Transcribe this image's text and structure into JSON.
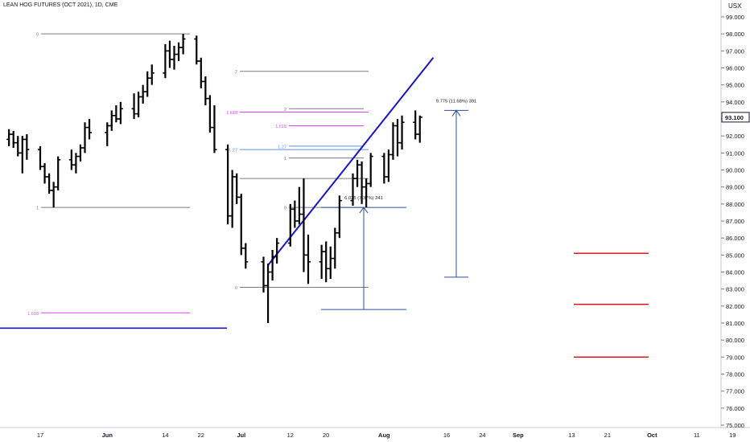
{
  "header": {
    "symbol_line": "LEAN HOG FUTURES (OCT 2021), 1D, CME",
    "currency": "USX"
  },
  "chart_data": {
    "type": "ohlc",
    "title": "LEAN HOG FUTURES (OCT 2021), 1D, CME",
    "y_axis": {
      "ylim": [
        74.5,
        99.8
      ],
      "ticks": [
        "99.000",
        "98.000",
        "97.000",
        "96.000",
        "95.000",
        "94.000",
        "93.000",
        "92.000",
        "91.000",
        "90.000",
        "89.000",
        "88.000",
        "87.000",
        "86.000",
        "85.000",
        "84.000",
        "83.000",
        "82.000",
        "81.000",
        "80.000",
        "79.000",
        "78.000",
        "77.000",
        "76.000",
        "75.000"
      ]
    },
    "current_price": "93.100",
    "x_axis": {
      "labels": [
        {
          "text": "17",
          "date": "2021-05-17"
        },
        {
          "text": "Jun",
          "date": "2021-06-01"
        },
        {
          "text": "14",
          "date": "2021-06-14"
        },
        {
          "text": "22",
          "date": "2021-06-22"
        },
        {
          "text": "Jul",
          "date": "2021-07-01"
        },
        {
          "text": "12",
          "date": "2021-07-12"
        },
        {
          "text": "20",
          "date": "2021-07-20"
        },
        {
          "text": "Aug",
          "date": "2021-08-02"
        },
        {
          "text": "16",
          "date": "2021-08-16"
        },
        {
          "text": "24",
          "date": "2021-08-24"
        },
        {
          "text": "Sep",
          "date": "2021-09-01"
        },
        {
          "text": "13",
          "date": "2021-09-13"
        },
        {
          "text": "21",
          "date": "2021-09-21"
        },
        {
          "text": "Oct",
          "date": "2021-10-01"
        },
        {
          "text": "11",
          "date": "2021-10-11"
        },
        {
          "text": "19",
          "date": "2021-10-19"
        }
      ]
    },
    "colors": {
      "bars": "#000000",
      "trendline": "#1616c8",
      "fib": "#787b86",
      "fib_ext": "#e040fb",
      "fib_127": "#5b8def",
      "measure": "#2a4f9e",
      "targets": "#e00000"
    },
    "bars": [
      {
        "t": "2021-05-10",
        "o": 91.8,
        "h": 92.4,
        "l": 91.4,
        "c": 92.1
      },
      {
        "t": "2021-05-11",
        "o": 92.1,
        "h": 92.3,
        "l": 91.3,
        "c": 91.6
      },
      {
        "t": "2021-05-12",
        "o": 91.6,
        "h": 92.0,
        "l": 90.8,
        "c": 91.0
      },
      {
        "t": "2021-05-13",
        "o": 91.0,
        "h": 92.0,
        "l": 89.8,
        "c": 91.8
      },
      {
        "t": "2021-05-14",
        "o": 91.8,
        "h": 92.1,
        "l": 90.6,
        "c": 91.2
      },
      {
        "t": "2021-05-17",
        "o": 91.2,
        "h": 91.4,
        "l": 90.0,
        "c": 90.2
      },
      {
        "t": "2021-05-18",
        "o": 90.2,
        "h": 90.4,
        "l": 89.2,
        "c": 89.6
      },
      {
        "t": "2021-05-19",
        "o": 89.6,
        "h": 89.8,
        "l": 88.6,
        "c": 88.8
      },
      {
        "t": "2021-05-20",
        "o": 88.8,
        "h": 89.3,
        "l": 87.8,
        "c": 89.0
      },
      {
        "t": "2021-05-21",
        "o": 89.0,
        "h": 90.8,
        "l": 88.8,
        "c": 90.6
      },
      {
        "t": "2021-05-24",
        "o": 90.6,
        "h": 91.2,
        "l": 90.0,
        "c": 90.3
      },
      {
        "t": "2021-05-25",
        "o": 90.3,
        "h": 91.0,
        "l": 89.8,
        "c": 90.8
      },
      {
        "t": "2021-05-26",
        "o": 90.8,
        "h": 91.5,
        "l": 90.5,
        "c": 91.3
      },
      {
        "t": "2021-05-27",
        "o": 91.3,
        "h": 92.8,
        "l": 91.0,
        "c": 92.5
      },
      {
        "t": "2021-05-28",
        "o": 92.5,
        "h": 93.0,
        "l": 91.8,
        "c": 92.2
      },
      {
        "t": "2021-06-01",
        "o": 92.2,
        "h": 92.8,
        "l": 91.4,
        "c": 92.6
      },
      {
        "t": "2021-06-02",
        "o": 92.6,
        "h": 93.5,
        "l": 92.3,
        "c": 93.2
      },
      {
        "t": "2021-06-03",
        "o": 93.2,
        "h": 93.8,
        "l": 92.8,
        "c": 93.0
      },
      {
        "t": "2021-06-04",
        "o": 93.0,
        "h": 94.0,
        "l": 92.7,
        "c": 93.6
      },
      {
        "t": "2021-06-07",
        "o": 93.6,
        "h": 94.5,
        "l": 93.0,
        "c": 93.3
      },
      {
        "t": "2021-06-08",
        "o": 93.3,
        "h": 94.6,
        "l": 93.1,
        "c": 94.3
      },
      {
        "t": "2021-06-09",
        "o": 94.3,
        "h": 95.0,
        "l": 93.9,
        "c": 94.6
      },
      {
        "t": "2021-06-10",
        "o": 94.6,
        "h": 95.8,
        "l": 94.3,
        "c": 95.4
      },
      {
        "t": "2021-06-11",
        "o": 95.4,
        "h": 96.2,
        "l": 95.0,
        "c": 95.7
      },
      {
        "t": "2021-06-14",
        "o": 95.7,
        "h": 97.4,
        "l": 95.4,
        "c": 97.0
      },
      {
        "t": "2021-06-15",
        "o": 97.0,
        "h": 97.6,
        "l": 96.0,
        "c": 96.5
      },
      {
        "t": "2021-06-16",
        "o": 96.5,
        "h": 97.3,
        "l": 95.9,
        "c": 96.8
      },
      {
        "t": "2021-06-17",
        "o": 96.8,
        "h": 97.5,
        "l": 96.4,
        "c": 97.2
      },
      {
        "t": "2021-06-18",
        "o": 97.2,
        "h": 98.0,
        "l": 96.8,
        "c": 97.7
      },
      {
        "t": "2021-06-21",
        "o": 97.7,
        "h": 97.9,
        "l": 96.2,
        "c": 96.4
      },
      {
        "t": "2021-06-22",
        "o": 96.4,
        "h": 96.6,
        "l": 94.8,
        "c": 95.2
      },
      {
        "t": "2021-06-23",
        "o": 95.2,
        "h": 95.5,
        "l": 93.8,
        "c": 94.2
      },
      {
        "t": "2021-06-24",
        "o": 94.2,
        "h": 94.4,
        "l": 92.2,
        "c": 92.5
      },
      {
        "t": "2021-06-25",
        "o": 92.5,
        "h": 93.8,
        "l": 91.0,
        "c": 91.2
      },
      {
        "t": "2021-06-28",
        "o": 91.2,
        "h": 91.5,
        "l": 86.8,
        "c": 87.3
      },
      {
        "t": "2021-06-29",
        "o": 87.3,
        "h": 90.0,
        "l": 86.6,
        "c": 89.6
      },
      {
        "t": "2021-06-30",
        "o": 89.6,
        "h": 89.8,
        "l": 88.0,
        "c": 88.4
      },
      {
        "t": "2021-07-01",
        "o": 88.4,
        "h": 88.6,
        "l": 85.0,
        "c": 85.4
      },
      {
        "t": "2021-07-02",
        "o": 85.4,
        "h": 85.7,
        "l": 84.2,
        "c": 84.6
      },
      {
        "t": "2021-07-06",
        "o": 84.6,
        "h": 84.9,
        "l": 82.8,
        "c": 83.2
      },
      {
        "t": "2021-07-07",
        "o": 83.2,
        "h": 84.5,
        "l": 81.0,
        "c": 84.0
      },
      {
        "t": "2021-07-08",
        "o": 84.0,
        "h": 85.3,
        "l": 83.5,
        "c": 84.9
      },
      {
        "t": "2021-07-09",
        "o": 84.9,
        "h": 86.0,
        "l": 84.5,
        "c": 85.7
      },
      {
        "t": "2021-07-12",
        "o": 85.7,
        "h": 88.0,
        "l": 85.5,
        "c": 87.7
      },
      {
        "t": "2021-07-13",
        "o": 87.7,
        "h": 88.2,
        "l": 86.6,
        "c": 87.0
      },
      {
        "t": "2021-07-14",
        "o": 87.0,
        "h": 89.0,
        "l": 86.8,
        "c": 87.4
      },
      {
        "t": "2021-07-15",
        "o": 87.4,
        "h": 89.5,
        "l": 84.0,
        "c": 85.0
      },
      {
        "t": "2021-07-16",
        "o": 85.0,
        "h": 86.2,
        "l": 83.3,
        "c": 84.6
      },
      {
        "t": "2021-07-19",
        "o": 84.6,
        "h": 85.6,
        "l": 83.6,
        "c": 85.2
      },
      {
        "t": "2021-07-20",
        "o": 85.2,
        "h": 85.8,
        "l": 83.4,
        "c": 84.2
      },
      {
        "t": "2021-07-21",
        "o": 84.2,
        "h": 85.5,
        "l": 83.6,
        "c": 84.8
      },
      {
        "t": "2021-07-22",
        "o": 84.8,
        "h": 86.6,
        "l": 84.2,
        "c": 86.3
      },
      {
        "t": "2021-07-23",
        "o": 86.3,
        "h": 88.5,
        "l": 86.0,
        "c": 88.2
      },
      {
        "t": "2021-07-26",
        "o": 88.2,
        "h": 89.8,
        "l": 87.9,
        "c": 89.5
      },
      {
        "t": "2021-07-27",
        "o": 89.5,
        "h": 90.6,
        "l": 89.0,
        "c": 90.3
      },
      {
        "t": "2021-07-28",
        "o": 90.3,
        "h": 90.5,
        "l": 88.0,
        "c": 89.0
      },
      {
        "t": "2021-07-29",
        "o": 89.0,
        "h": 89.5,
        "l": 87.8,
        "c": 89.2
      },
      {
        "t": "2021-07-30",
        "o": 89.2,
        "h": 91.0,
        "l": 89.0,
        "c": 90.8
      },
      {
        "t": "2021-08-02",
        "o": 90.8,
        "h": 91.0,
        "l": 89.2,
        "c": 89.6
      },
      {
        "t": "2021-08-03",
        "o": 89.6,
        "h": 91.2,
        "l": 89.3,
        "c": 90.9
      },
      {
        "t": "2021-08-04",
        "o": 90.9,
        "h": 92.8,
        "l": 90.6,
        "c": 92.6
      },
      {
        "t": "2021-08-05",
        "o": 92.6,
        "h": 93.0,
        "l": 90.8,
        "c": 91.6
      },
      {
        "t": "2021-08-06",
        "o": 91.6,
        "h": 93.2,
        "l": 91.2,
        "c": 92.8
      },
      {
        "t": "2021-08-09",
        "o": 92.8,
        "h": 93.5,
        "l": 91.8,
        "c": 92.1
      },
      {
        "t": "2021-08-10",
        "o": 92.1,
        "h": 93.2,
        "l": 91.6,
        "c": 93.1
      }
    ],
    "fib_left": {
      "levels": [
        {
          "label": "0",
          "value": 98.0
        },
        {
          "label": "1",
          "value": 87.8
        },
        {
          "label": "1.618",
          "value": 81.6
        }
      ]
    },
    "fib_mid": {
      "levels": [
        {
          "label": "2",
          "value": 95.8
        },
        {
          "label": "1.618",
          "value": 93.4
        },
        {
          "label": "1.27",
          "value": 91.2
        },
        {
          "label": "1",
          "value": 89.5
        },
        {
          "label": "0",
          "value": 83.1
        }
      ]
    },
    "fib_right": {
      "levels": [
        {
          "label": "2",
          "value": 93.6
        },
        {
          "label": "1.618",
          "value": 92.6
        },
        {
          "label": "1.27",
          "value": 91.4
        },
        {
          "label": "1",
          "value": 90.7
        },
        {
          "label": "0",
          "value": 87.8
        }
      ]
    },
    "measure_1": {
      "label": "6.025 (7.37%) 241",
      "from": 81.8,
      "to": 87.8
    },
    "measure_2": {
      "label": "9.775 (11.68%) 391",
      "from": 83.7,
      "to": 93.5
    },
    "support_line": {
      "value": 80.7
    },
    "trendline": {
      "from": {
        "t": "2021-07-07",
        "v": 84.4
      },
      "to": {
        "t": "2021-08-13",
        "v": 96.6
      }
    },
    "target_levels": [
      85.1,
      82.1,
      79.0
    ]
  }
}
